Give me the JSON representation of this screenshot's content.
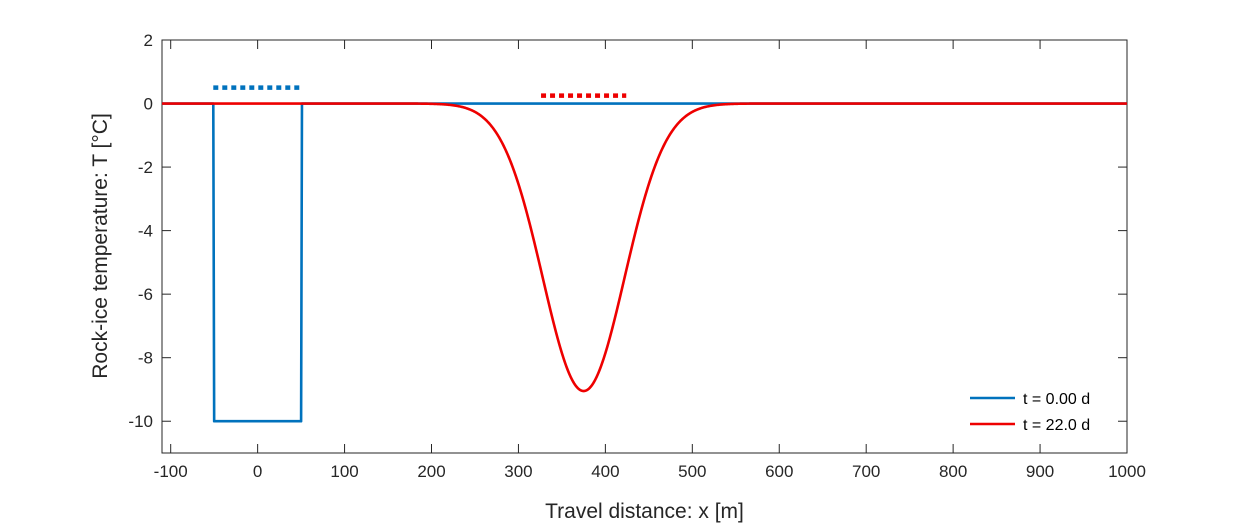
{
  "chart_data": {
    "type": "line",
    "xlabel": "Travel distance: x [m]",
    "ylabel": "Rock-ice temperature: T [°C]",
    "xlim": [
      -110,
      1000
    ],
    "ylim": [
      -11,
      2
    ],
    "xticks": [
      -100,
      0,
      100,
      200,
      300,
      400,
      500,
      600,
      700,
      800,
      900,
      1000
    ],
    "xtick_labels": [
      "-100",
      "0",
      "100",
      "200",
      "300",
      "400",
      "500",
      "600",
      "700",
      "800",
      "900",
      "1000"
    ],
    "yticks": [
      2,
      0,
      -2,
      -4,
      -6,
      -8,
      -10
    ],
    "ytick_labels": [
      "2",
      "0",
      "-2",
      "-4",
      "-6",
      "-8",
      "-10"
    ],
    "grid": false,
    "legend_position": "bottom-right",
    "series": [
      {
        "name": "t = 0.00 d",
        "color": "#0072BD",
        "x": [
          -110,
          -51,
          -50,
          -49,
          49,
          50,
          51,
          1000
        ],
        "y": [
          0,
          0,
          -10,
          -10,
          -10,
          -10,
          0,
          0
        ]
      },
      {
        "name": "t = 22.0 d",
        "color": "#EE0000",
        "gaussian": {
          "center": 375,
          "amplitude": -9.05,
          "sigma": 47,
          "x_from": -110,
          "x_to": 1000
        }
      }
    ],
    "markers": [
      {
        "color": "#0072BD",
        "x": [
          -51,
          51
        ],
        "y": 0.5,
        "style": "dotted"
      },
      {
        "color": "#EE0000",
        "x": [
          326,
          424
        ],
        "y": 0.25,
        "style": "dotted"
      }
    ]
  }
}
